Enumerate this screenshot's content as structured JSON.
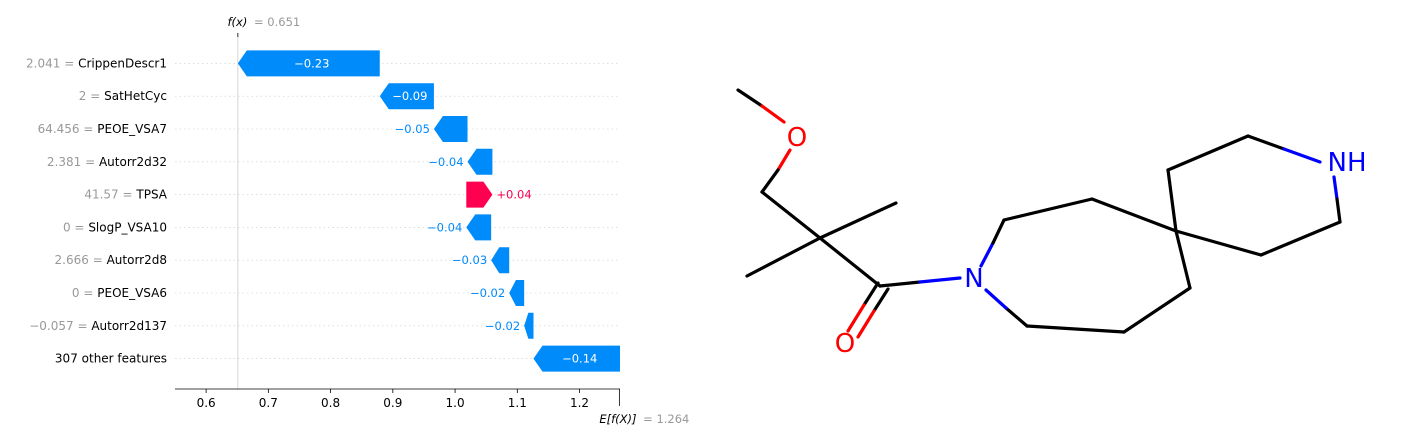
{
  "chart_data": [
    {
      "type": "waterfall",
      "fx_label": "f(x)",
      "fx_value": 0.651,
      "fx_text": "= 0.651",
      "base_label": "E[f(X)]",
      "base_value": 1.264,
      "base_text": "= 1.264",
      "xlim": [
        0.55,
        1.265
      ],
      "xticks": [
        0.6,
        0.7,
        0.8,
        0.9,
        1.0,
        1.1,
        1.2
      ],
      "xtick_labels": [
        "0.6",
        "0.7",
        "0.8",
        "0.9",
        "1.0",
        "1.1",
        "1.2"
      ],
      "colors": {
        "negative": "#008bfb",
        "positive": "#ff0051",
        "feature_value": "#999999",
        "label": "#000000"
      },
      "features": [
        {
          "value_text": "2.041",
          "name": "CrippenDescr1",
          "contribution": -0.228,
          "label": "−0.23"
        },
        {
          "value_text": "2",
          "name": "SatHetCyc",
          "contribution": -0.087,
          "label": "−0.09"
        },
        {
          "value_text": "64.456",
          "name": "PEOE_VSA7",
          "contribution": -0.054,
          "label": "−0.05"
        },
        {
          "value_text": "2.381",
          "name": "Autorr2d32",
          "contribution": -0.04,
          "label": "−0.04"
        },
        {
          "value_text": "41.57",
          "name": "TPSA",
          "contribution": 0.042,
          "label": "+0.04"
        },
        {
          "value_text": "0",
          "name": "SlogP_VSA10",
          "contribution": -0.04,
          "label": "−0.04"
        },
        {
          "value_text": "2.666",
          "name": "Autorr2d8",
          "contribution": -0.029,
          "label": "−0.03"
        },
        {
          "value_text": "0",
          "name": "PEOE_VSA6",
          "contribution": -0.024,
          "label": "−0.02"
        },
        {
          "value_text": "−0.057",
          "name": "Autorr2d137",
          "contribution": -0.015,
          "label": "−0.02"
        },
        {
          "value_text": "",
          "name": "307 other features",
          "contribution": -0.139,
          "label": "−0.14"
        }
      ]
    },
    {
      "type": "molecule",
      "atom_labels": {
        "oxygen_ether": "O",
        "oxygen_carbonyl": "O",
        "nitrogen_amide": "N",
        "nitrogen_amine": "NH"
      },
      "colors": {
        "bond": "#000000",
        "oxygen": "#ff0000",
        "nitrogen": "#0000ff"
      }
    }
  ]
}
